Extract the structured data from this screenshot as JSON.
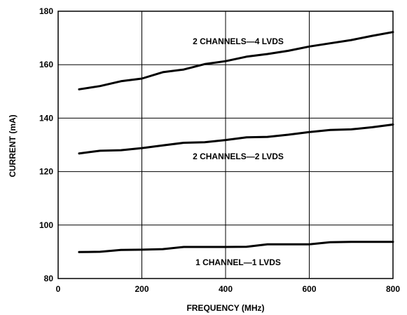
{
  "chart_data": {
    "type": "line",
    "title": "",
    "xlabel": "FREQUENCY (MHz)",
    "ylabel": "CURRENT (mA)",
    "xlim": [
      0,
      800
    ],
    "ylim": [
      80,
      180
    ],
    "xticks": [
      0,
      200,
      400,
      600,
      800
    ],
    "yticks": [
      80,
      100,
      120,
      140,
      160,
      180
    ],
    "grid": true,
    "legend": "none",
    "series": [
      {
        "name": "2 CHANNELS—4 LVDS",
        "x": [
          50,
          100,
          150,
          200,
          250,
          300,
          350,
          400,
          450,
          500,
          550,
          600,
          650,
          700,
          750,
          800
        ],
        "y": [
          150.8,
          152.0,
          153.8,
          154.8,
          157.2,
          158.2,
          160.2,
          161.3,
          163.0,
          164.0,
          165.2,
          166.8,
          168.0,
          169.2,
          170.8,
          172.2
        ]
      },
      {
        "name": "2 CHANNELS—2 LVDS",
        "x": [
          50,
          100,
          150,
          200,
          250,
          300,
          350,
          400,
          450,
          500,
          550,
          600,
          650,
          700,
          750,
          800
        ],
        "y": [
          126.8,
          127.8,
          128.0,
          128.8,
          129.8,
          130.8,
          131.0,
          131.8,
          132.8,
          133.0,
          133.8,
          134.8,
          135.6,
          135.8,
          136.6,
          137.6
        ]
      },
      {
        "name": "1 CHANNEL—1 LVDS",
        "x": [
          50,
          100,
          150,
          200,
          250,
          300,
          350,
          400,
          450,
          500,
          550,
          600,
          650,
          700,
          750,
          800
        ],
        "y": [
          89.9,
          90.0,
          90.7,
          90.8,
          91.0,
          91.8,
          91.8,
          91.8,
          91.9,
          92.8,
          92.8,
          92.8,
          93.6,
          93.7,
          93.7,
          93.7
        ]
      }
    ]
  }
}
